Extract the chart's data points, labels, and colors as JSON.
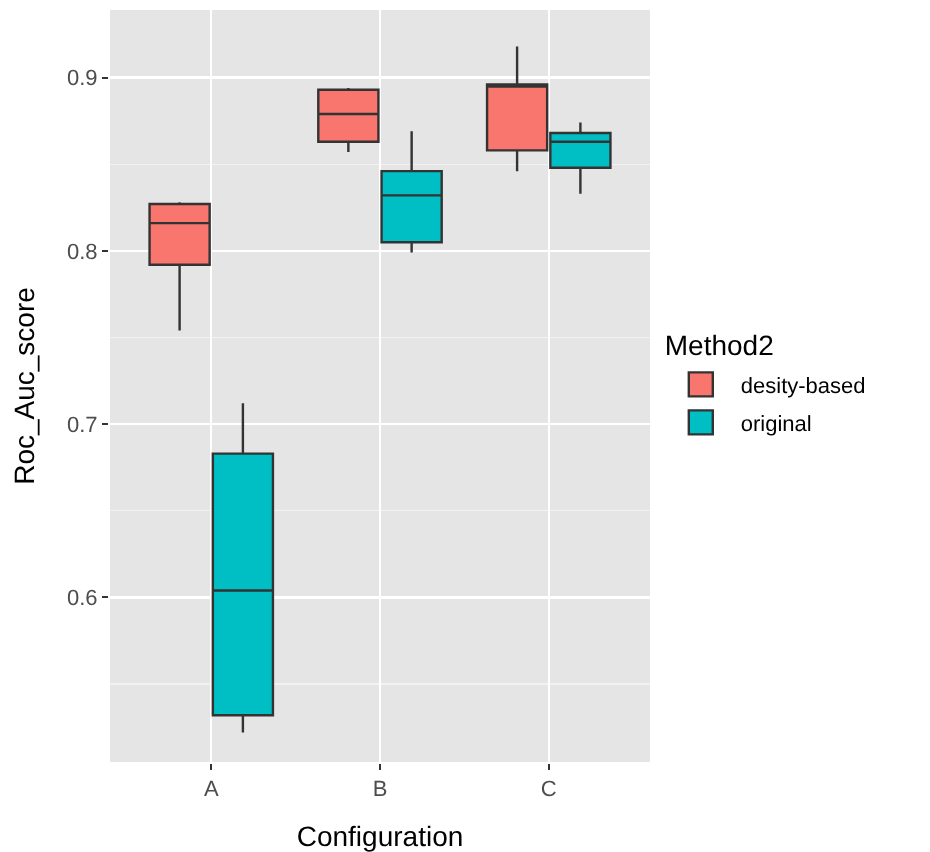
{
  "chart_data": {
    "type": "box",
    "xlabel": "Configuration",
    "ylabel": "Roc_Auc_score",
    "legend_title": "Method2",
    "categories": [
      "A",
      "B",
      "C"
    ],
    "series": [
      {
        "name": "desity-based",
        "color": "#f8766d",
        "boxes": [
          {
            "low": 0.754,
            "q1": 0.792,
            "median": 0.816,
            "q3": 0.827,
            "high": 0.828
          },
          {
            "low": 0.857,
            "q1": 0.863,
            "median": 0.879,
            "q3": 0.893,
            "high": 0.894
          },
          {
            "low": 0.846,
            "q1": 0.858,
            "median": 0.895,
            "q3": 0.896,
            "high": 0.918
          }
        ]
      },
      {
        "name": "original",
        "color": "#00bfc4",
        "boxes": [
          {
            "low": 0.522,
            "q1": 0.532,
            "median": 0.604,
            "q3": 0.683,
            "high": 0.712
          },
          {
            "low": 0.799,
            "q1": 0.805,
            "median": 0.832,
            "q3": 0.846,
            "high": 0.869
          },
          {
            "low": 0.833,
            "q1": 0.848,
            "median": 0.863,
            "q3": 0.868,
            "high": 0.874
          }
        ]
      }
    ],
    "ylim": [
      0.505,
      0.939
    ],
    "yticks": [
      {
        "value": 0.6,
        "label": "0.6"
      },
      {
        "value": 0.7,
        "label": "0.7"
      },
      {
        "value": 0.8,
        "label": "0.8"
      },
      {
        "value": 0.9,
        "label": "0.9"
      }
    ],
    "grid": true,
    "legend": "right"
  }
}
